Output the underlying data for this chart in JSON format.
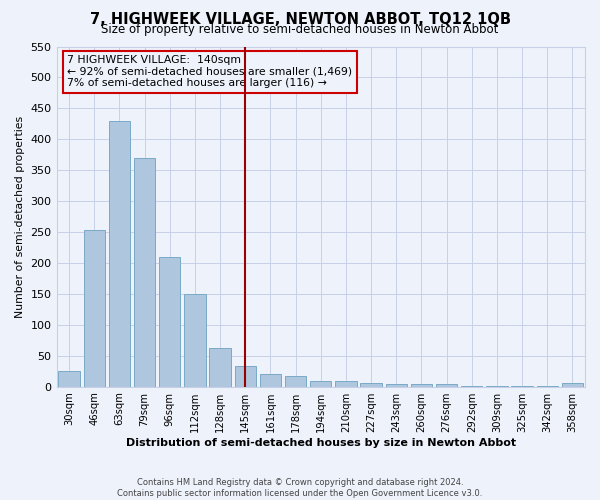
{
  "title": "7, HIGHWEEK VILLAGE, NEWTON ABBOT, TQ12 1QB",
  "subtitle": "Size of property relative to semi-detached houses in Newton Abbot",
  "xlabel": "Distribution of semi-detached houses by size in Newton Abbot",
  "ylabel": "Number of semi-detached properties",
  "footnote1": "Contains HM Land Registry data © Crown copyright and database right 2024.",
  "footnote2": "Contains public sector information licensed under the Open Government Licence v3.0.",
  "bar_labels": [
    "30sqm",
    "46sqm",
    "63sqm",
    "79sqm",
    "96sqm",
    "112sqm",
    "128sqm",
    "145sqm",
    "161sqm",
    "178sqm",
    "194sqm",
    "210sqm",
    "227sqm",
    "243sqm",
    "260sqm",
    "276sqm",
    "292sqm",
    "309sqm",
    "325sqm",
    "342sqm",
    "358sqm"
  ],
  "bar_values": [
    25,
    253,
    430,
    370,
    210,
    150,
    63,
    33,
    20,
    17,
    10,
    10,
    6,
    5,
    5,
    4,
    1,
    1,
    1,
    1,
    6
  ],
  "bar_color": "#aec6de",
  "bar_edgecolor": "#7aaac8",
  "highlight_index": 7,
  "vline_color": "#990000",
  "ylim": [
    0,
    550
  ],
  "yticks": [
    0,
    50,
    100,
    150,
    200,
    250,
    300,
    350,
    400,
    450,
    500,
    550
  ],
  "annotation_title": "7 HIGHWEEK VILLAGE:  140sqm",
  "annotation_line1": "← 92% of semi-detached houses are smaller (1,469)",
  "annotation_line2": "7% of semi-detached houses are larger (116) →",
  "annotation_box_edgecolor": "#cc0000",
  "background_color": "#eef2fb",
  "grid_color": "#c8d0e8",
  "title_fontsize": 10.5,
  "subtitle_fontsize": 8.5
}
